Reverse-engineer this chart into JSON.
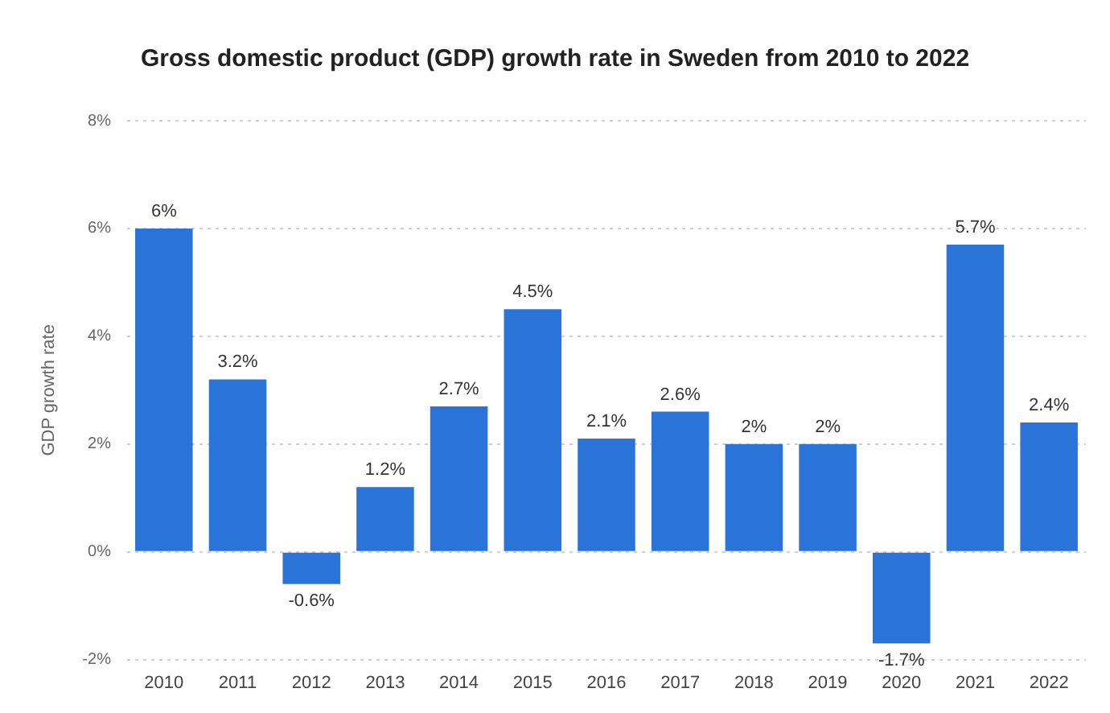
{
  "chart_data": {
    "type": "bar",
    "title": "Gross domestic product (GDP) growth rate in Sweden from 2010 to 2022",
    "ylabel": "GDP growth rate",
    "categories": [
      "2010",
      "2011",
      "2012",
      "2013",
      "2014",
      "2015",
      "2016",
      "2017",
      "2018",
      "2019",
      "2020",
      "2021",
      "2022"
    ],
    "values": [
      6,
      3.2,
      -0.6,
      1.2,
      2.7,
      4.5,
      2.1,
      2.6,
      2,
      2,
      -1.7,
      5.7,
      2.4
    ],
    "value_labels": [
      "6%",
      "3.2%",
      "-0.6%",
      "1.2%",
      "2.7%",
      "4.5%",
      "2.1%",
      "2.6%",
      "2%",
      "2%",
      "-1.7%",
      "5.7%",
      "2.4%"
    ],
    "color": "#2a74d9",
    "ylim": [
      -2,
      8
    ],
    "yticks": [
      {
        "value": -2,
        "label": "-2%"
      },
      {
        "value": 0,
        "label": "0%"
      },
      {
        "value": 2,
        "label": "2%"
      },
      {
        "value": 4,
        "label": "4%"
      },
      {
        "value": 6,
        "label": "6%"
      },
      {
        "value": 8,
        "label": "8%"
      }
    ],
    "grid": "y",
    "legend": false
  }
}
